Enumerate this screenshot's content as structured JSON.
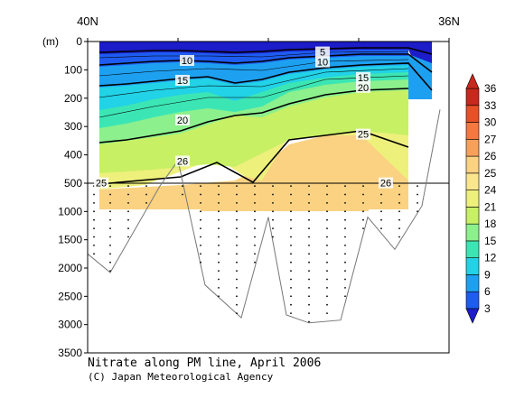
{
  "chart_data": {
    "type": "heatmap",
    "title": "Nitrate along PM line, April 2006",
    "credit": "(C) Japan Meteorological Agency",
    "xaxis": {
      "left_label": "40N",
      "right_label": "36N",
      "xlim": [
        40,
        36
      ]
    },
    "yaxis": {
      "unit_label": "(m)",
      "upper_ticks": [
        "0",
        "100",
        "200",
        "300",
        "400",
        "500"
      ],
      "lower_ticks": [
        "1000",
        "1500",
        "2000",
        "2500",
        "3000",
        "3500"
      ],
      "upper_range": [
        0,
        500
      ],
      "lower_range": [
        500,
        3500
      ]
    },
    "colorbar": {
      "levels": [
        "3",
        "6",
        "9",
        "12",
        "15",
        "18",
        "21",
        "24",
        "25",
        "26",
        "27",
        "30",
        "33",
        "36"
      ],
      "colors": [
        "#1c1cc8",
        "#1e5cf0",
        "#1ea0f0",
        "#22d2e6",
        "#3ce6b4",
        "#8cf08c",
        "#c8f064",
        "#eef07c",
        "#fae68c",
        "#fad282",
        "#f7a05a",
        "#f57840",
        "#e85028",
        "#c8281e"
      ]
    },
    "contour_labels": [
      {
        "text": "5",
        "lat": 37.4,
        "depth": 40
      },
      {
        "text": "10",
        "lat": 38.9,
        "depth": 70
      },
      {
        "text": "10",
        "lat": 37.4,
        "depth": 75
      },
      {
        "text": "15",
        "lat": 38.95,
        "depth": 140
      },
      {
        "text": "15",
        "lat": 36.95,
        "depth": 130
      },
      {
        "text": "20",
        "lat": 36.95,
        "depth": 165
      },
      {
        "text": "20",
        "lat": 38.95,
        "depth": 280
      },
      {
        "text": "25",
        "lat": 36.95,
        "depth": 330
      },
      {
        "text": "26",
        "lat": 38.95,
        "depth": 425
      },
      {
        "text": "25",
        "lat": 39.85,
        "depth": 510
      },
      {
        "text": "26",
        "lat": 36.7,
        "depth": 510
      }
    ],
    "bathymetry": [
      {
        "lat": 40.0,
        "depth": 1750
      },
      {
        "lat": 39.75,
        "depth": 2080
      },
      {
        "lat": 39.2,
        "depth": 550
      },
      {
        "lat": 39.0,
        "depth": 420
      },
      {
        "lat": 38.7,
        "depth": 2300
      },
      {
        "lat": 38.3,
        "depth": 2880
      },
      {
        "lat": 38.0,
        "depth": 1100
      },
      {
        "lat": 37.8,
        "depth": 2830
      },
      {
        "lat": 37.55,
        "depth": 2970
      },
      {
        "lat": 37.2,
        "depth": 2920
      },
      {
        "lat": 36.9,
        "depth": 1100
      },
      {
        "lat": 36.6,
        "depth": 1670
      },
      {
        "lat": 36.3,
        "depth": 900
      },
      {
        "lat": 36.1,
        "depth": 240
      }
    ],
    "station_lats": [
      39.93,
      39.75,
      39.55,
      39.35,
      39.15,
      38.95,
      38.75,
      38.55,
      38.35,
      38.15,
      37.95,
      37.75,
      37.55,
      37.35,
      37.15,
      36.95,
      36.75,
      36.55,
      36.35,
      36.15
    ]
  }
}
